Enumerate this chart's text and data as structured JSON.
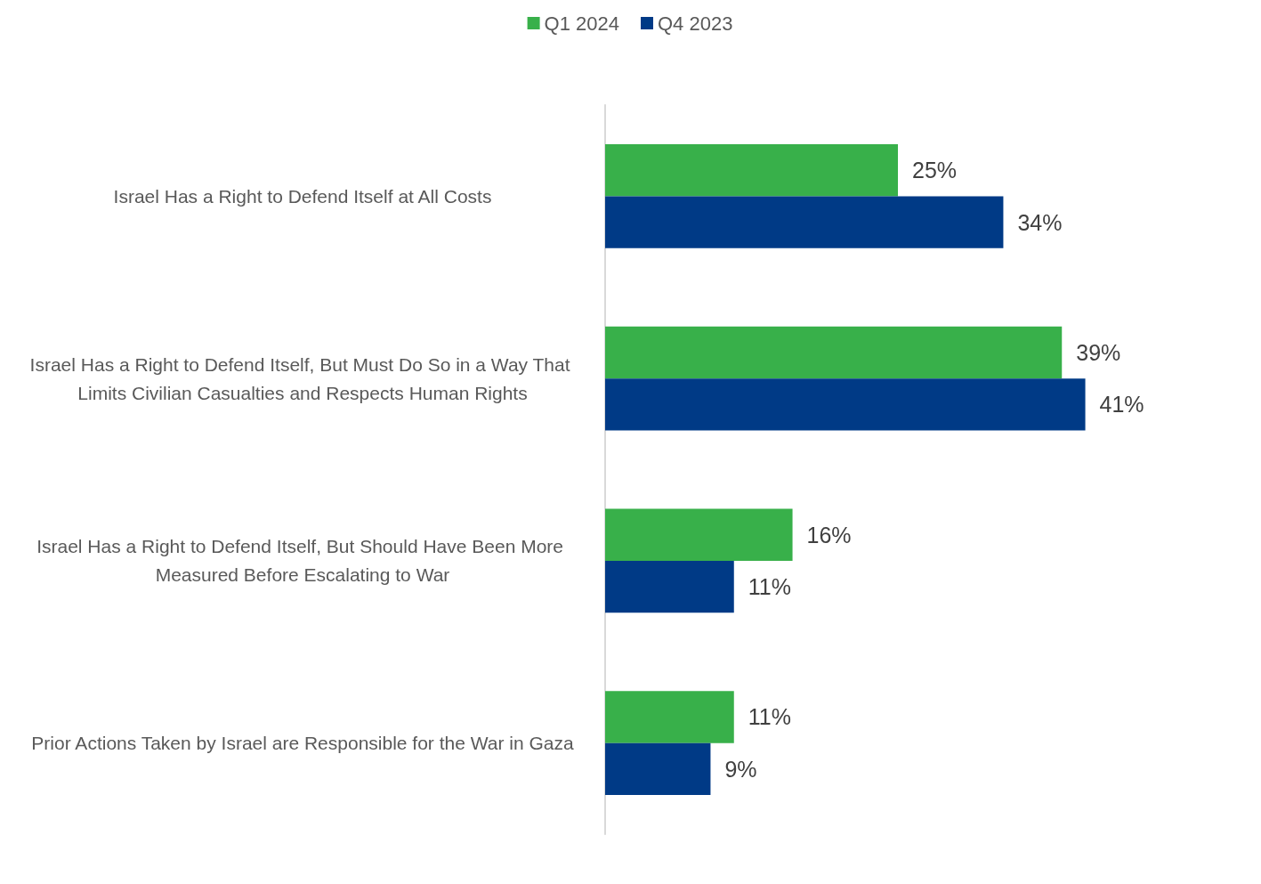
{
  "chart_data": {
    "type": "bar",
    "orientation": "horizontal",
    "legend": "top",
    "tick_labels": "y",
    "categories": [
      "Israel Has a Right to Defend Itself at All Costs",
      "Israel Has a Right to Defend Itself, But Must Do So in a Way That Limits Civilian Casualties and Respects Human Rights",
      "Israel Has a Right to Defend Itself, But Should Have Been More Measured Before Escalating to War",
      "Prior Actions Taken by Israel are Responsible for the War in Gaza"
    ],
    "series": [
      {
        "name": "Q1 2024",
        "color": "#38b04a",
        "values": [
          25,
          39,
          16,
          11
        ],
        "value_labels": [
          "25%",
          "39%",
          "16%",
          "11%"
        ]
      },
      {
        "name": "Q4 2023",
        "color": "#003a86",
        "values": [
          34,
          41,
          11,
          9
        ],
        "value_labels": [
          "34%",
          "41%",
          "11%",
          "9%"
        ]
      }
    ]
  }
}
